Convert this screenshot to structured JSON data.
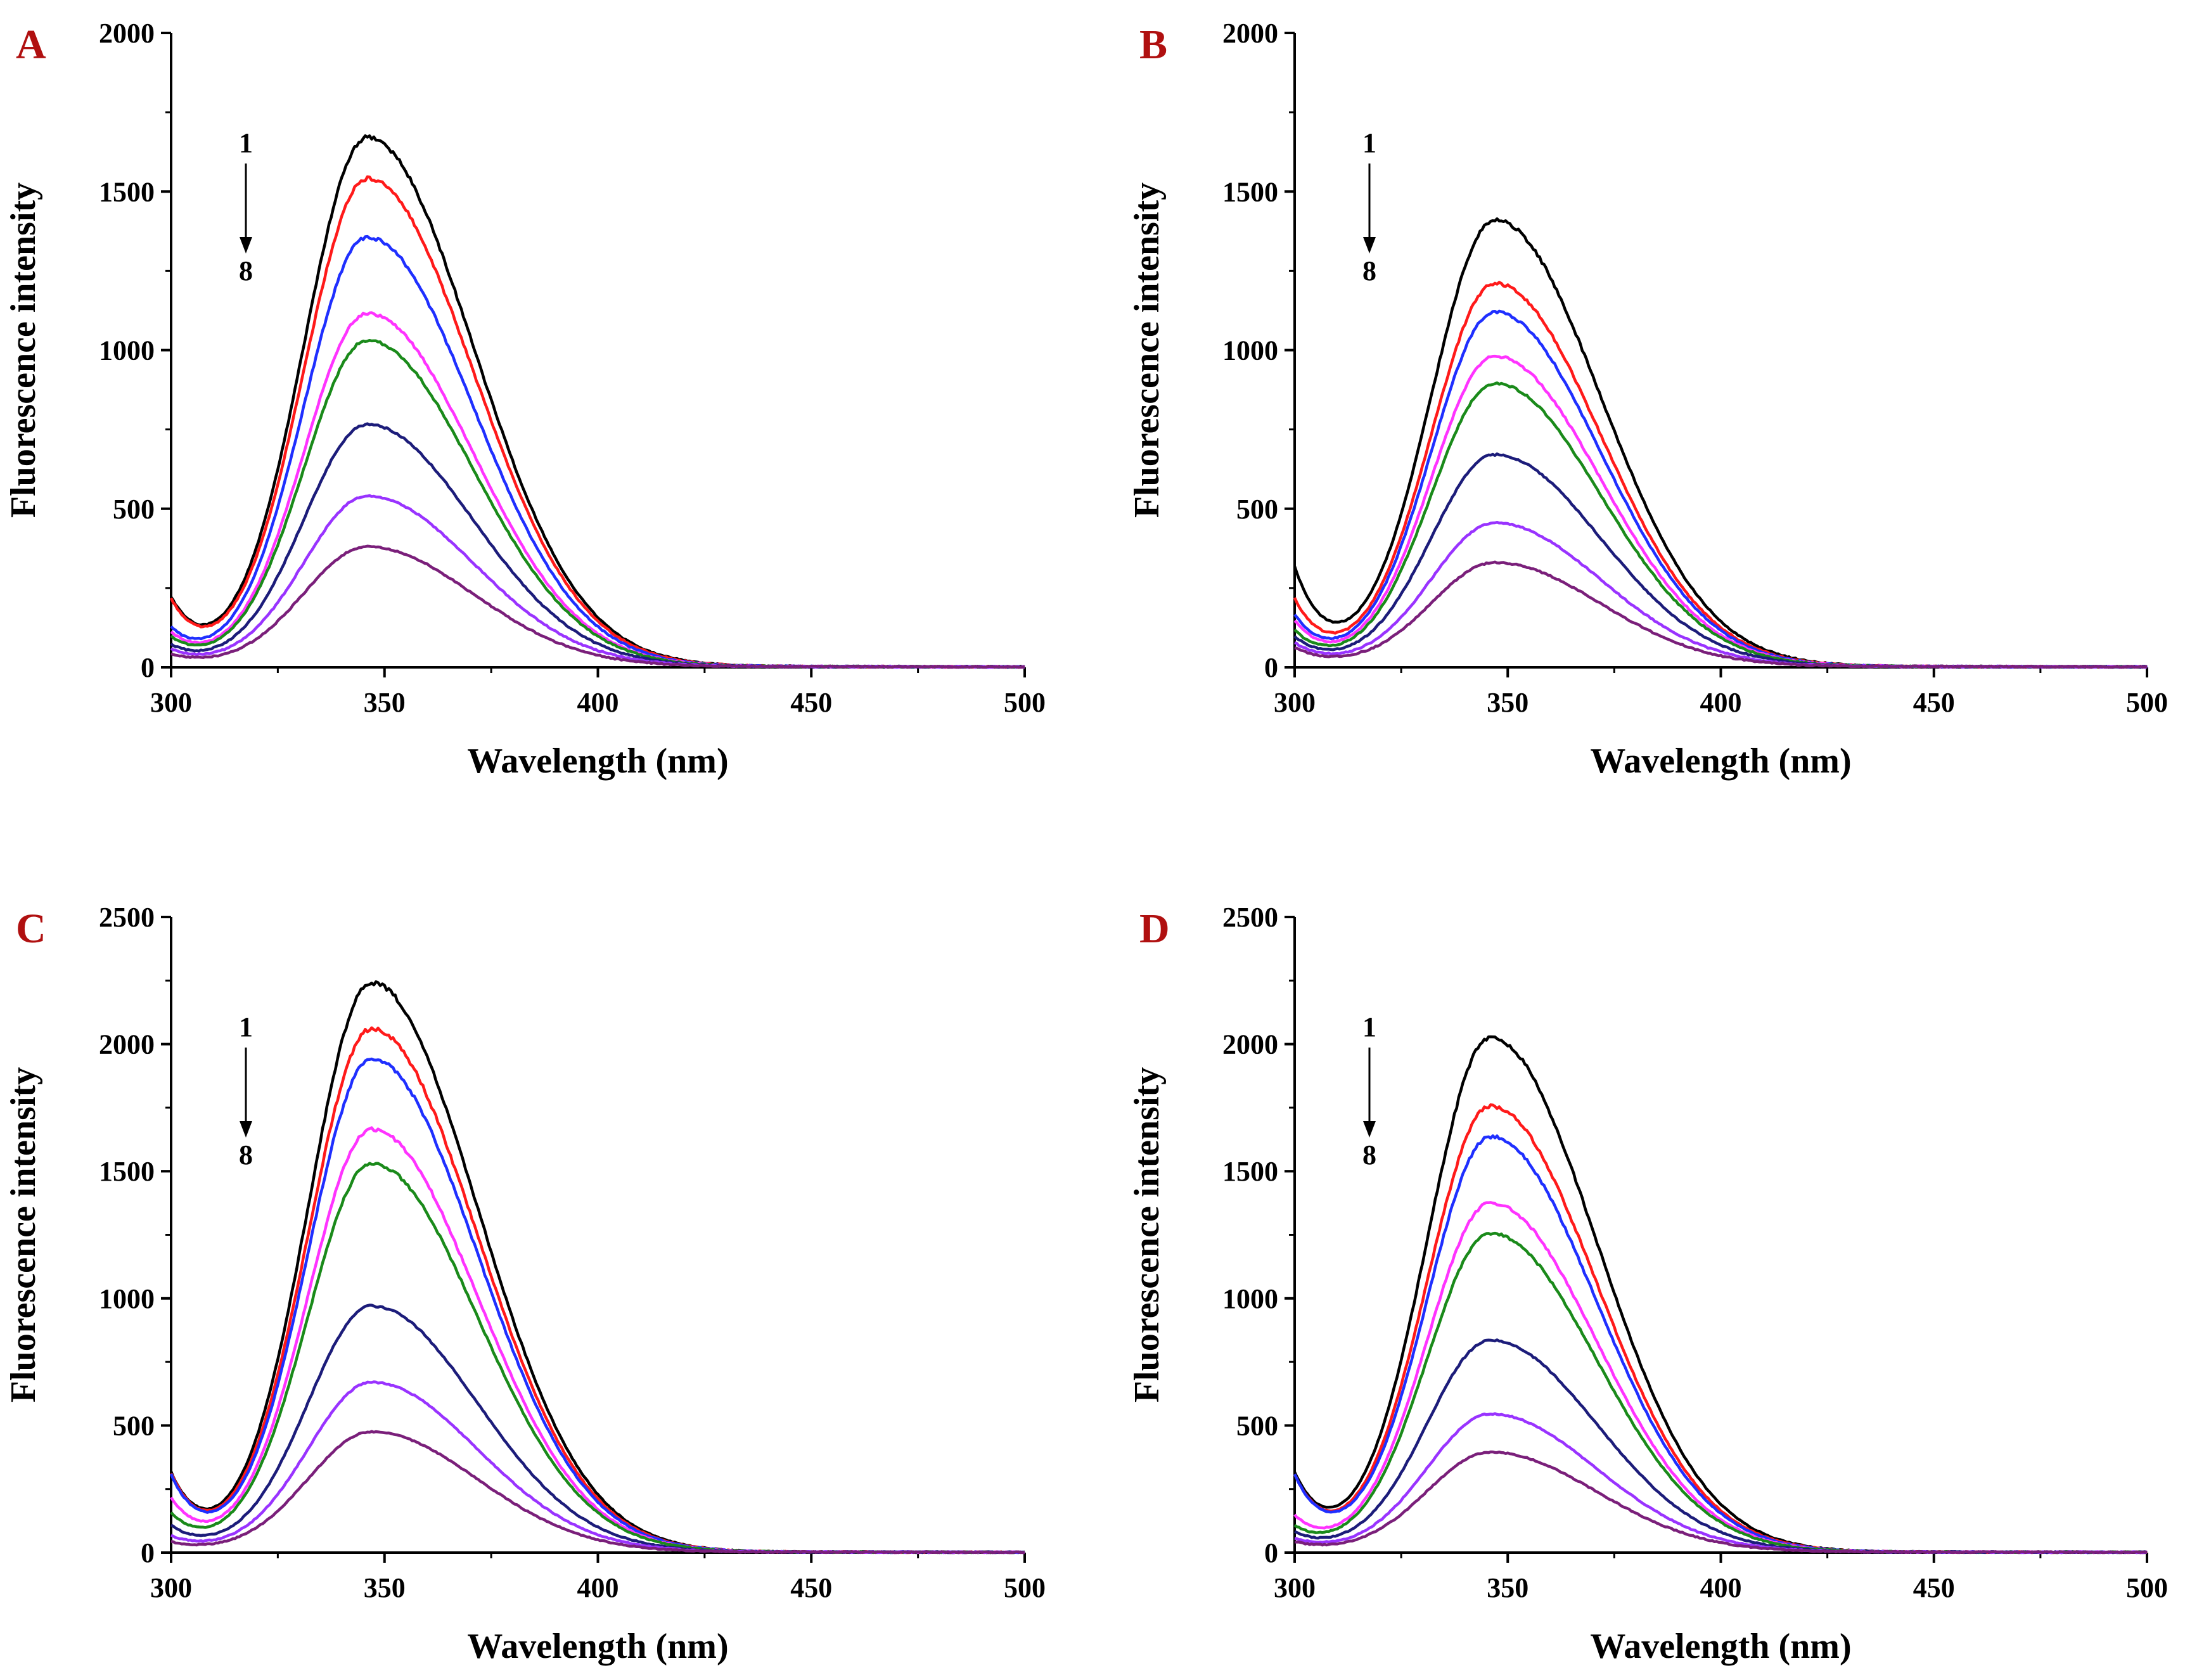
{
  "figure": {
    "series_colors": [
      "#000000",
      "#ff1a1a",
      "#1f2fff",
      "#ff33ff",
      "#1a8a1a",
      "#1c1c7a",
      "#9933ff",
      "#7a1f7a"
    ],
    "arrow_annotation": {
      "start": "1",
      "end": "8"
    }
  },
  "chart_data": [
    {
      "panel": "A",
      "type": "line",
      "xlabel": "Wavelength (nm)",
      "ylabel": "Fluorescence intensity",
      "xlim": [
        300,
        500
      ],
      "ylim": [
        0,
        2000
      ],
      "xticks": [
        300,
        350,
        400,
        450,
        500
      ],
      "yticks": [
        0,
        500,
        1000,
        1500,
        2000
      ],
      "peak_wavelength": 346,
      "series": [
        {
          "name": "1",
          "peak": 1665,
          "start": 215
        },
        {
          "name": "2",
          "peak": 1535,
          "start": 210
        },
        {
          "name": "3",
          "peak": 1350,
          "start": 120
        },
        {
          "name": "4",
          "peak": 1110,
          "start": 105
        },
        {
          "name": "5",
          "peak": 1025,
          "start": 90
        },
        {
          "name": "6",
          "peak": 760,
          "start": 65
        },
        {
          "name": "7",
          "peak": 535,
          "start": 50
        },
        {
          "name": "8",
          "peak": 375,
          "start": 35
        }
      ]
    },
    {
      "panel": "B",
      "type": "line",
      "xlabel": "Wavelength (nm)",
      "ylabel": "Fluorescence intensity",
      "xlim": [
        300,
        500
      ],
      "ylim": [
        0,
        2000
      ],
      "xticks": [
        300,
        350,
        400,
        450,
        500
      ],
      "yticks": [
        0,
        500,
        1000,
        1500,
        2000
      ],
      "peak_wavelength": 347,
      "series": [
        {
          "name": "1",
          "peak": 1405,
          "start": 310
        },
        {
          "name": "2",
          "peak": 1205,
          "start": 210
        },
        {
          "name": "3",
          "peak": 1115,
          "start": 160
        },
        {
          "name": "4",
          "peak": 975,
          "start": 140
        },
        {
          "name": "5",
          "peak": 890,
          "start": 110
        },
        {
          "name": "6",
          "peak": 665,
          "start": 90
        },
        {
          "name": "7",
          "peak": 450,
          "start": 70
        },
        {
          "name": "8",
          "peak": 325,
          "start": 55
        }
      ]
    },
    {
      "panel": "C",
      "type": "line",
      "xlabel": "Wavelength (nm)",
      "ylabel": "Fluorescence intensity",
      "xlim": [
        300,
        500
      ],
      "ylim": [
        0,
        2500
      ],
      "xticks": [
        300,
        350,
        400,
        450,
        500
      ],
      "yticks": [
        0,
        500,
        1000,
        1500,
        2000,
        2500
      ],
      "peak_wavelength": 347,
      "series": [
        {
          "name": "1",
          "peak": 2235,
          "start": 310
        },
        {
          "name": "2",
          "peak": 2055,
          "start": 305
        },
        {
          "name": "3",
          "peak": 1935,
          "start": 300
        },
        {
          "name": "4",
          "peak": 1660,
          "start": 210
        },
        {
          "name": "5",
          "peak": 1525,
          "start": 150
        },
        {
          "name": "6",
          "peak": 965,
          "start": 100
        },
        {
          "name": "7",
          "peak": 665,
          "start": 60
        },
        {
          "name": "8",
          "peak": 470,
          "start": 35
        }
      ]
    },
    {
      "panel": "D",
      "type": "line",
      "xlabel": "Wavelength (nm)",
      "ylabel": "Fluorescence intensity",
      "xlim": [
        300,
        500
      ],
      "ylim": [
        0,
        2500
      ],
      "xticks": [
        300,
        350,
        400,
        450,
        500
      ],
      "yticks": [
        0,
        500,
        1000,
        1500,
        2000,
        2500
      ],
      "peak_wavelength": 346,
      "series": [
        {
          "name": "1",
          "peak": 2020,
          "start": 310
        },
        {
          "name": "2",
          "peak": 1750,
          "start": 300
        },
        {
          "name": "3",
          "peak": 1630,
          "start": 300
        },
        {
          "name": "4",
          "peak": 1370,
          "start": 140
        },
        {
          "name": "5",
          "peak": 1250,
          "start": 100
        },
        {
          "name": "6",
          "peak": 830,
          "start": 75
        },
        {
          "name": "7",
          "peak": 540,
          "start": 50
        },
        {
          "name": "8",
          "peak": 390,
          "start": 35
        }
      ]
    }
  ]
}
